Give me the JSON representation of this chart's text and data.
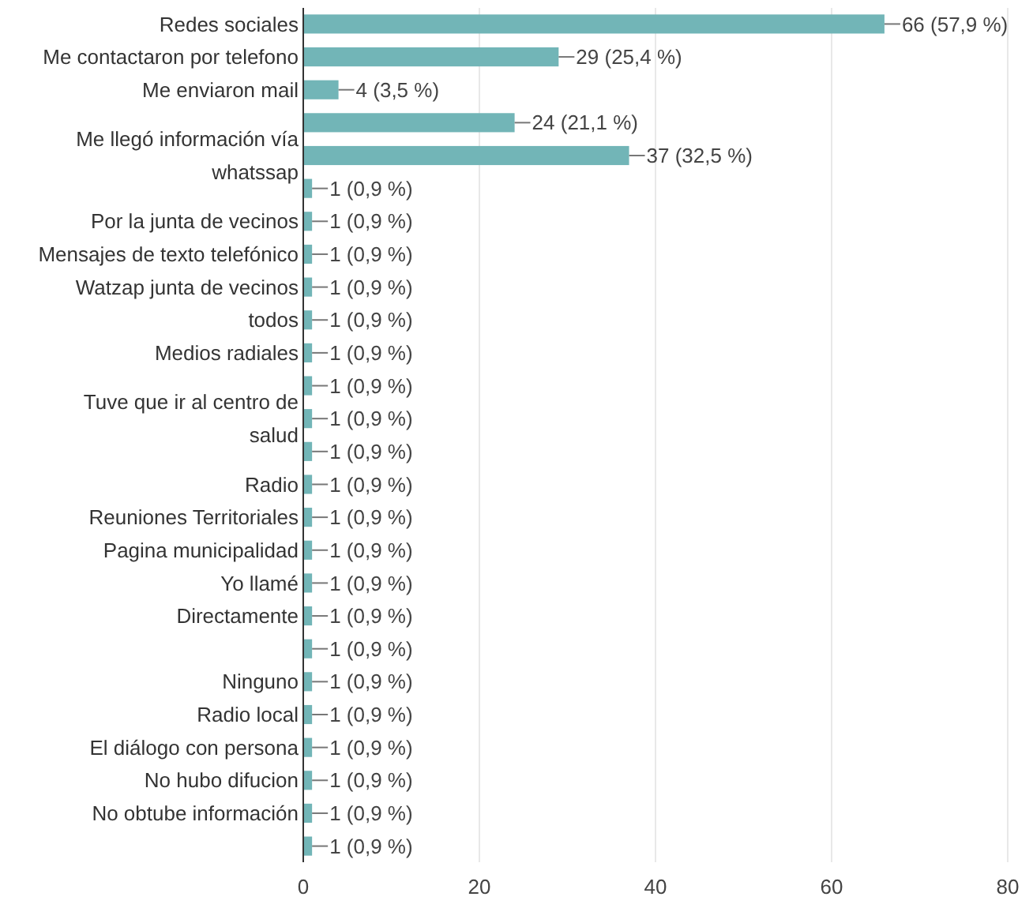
{
  "chart_data": {
    "type": "bar",
    "orientation": "horizontal",
    "color": "#72b5b7",
    "categories": [
      "Redes sociales",
      "Me contactaron por telefono",
      "Me enviaron mail",
      null,
      "Me llegó información vía whatssap",
      null,
      "Por la junta de vecinos",
      "Mensajes de texto telefónico",
      "Watzap junta de vecinos",
      "todos",
      "Medios radiales",
      null,
      "Tuve que ir al centro de salud",
      null,
      "Radio",
      "Reuniones Territoriales",
      "Pagina municipalidad",
      "Yo llamé",
      "Directamente",
      null,
      "Ninguno",
      "Radio local",
      "El diálogo con persona",
      "No hubo difucion",
      "No obtube información",
      null
    ],
    "values": [
      66,
      29,
      4,
      24,
      37,
      1,
      1,
      1,
      1,
      1,
      1,
      1,
      1,
      1,
      1,
      1,
      1,
      1,
      1,
      1,
      1,
      1,
      1,
      1,
      1,
      1
    ],
    "value_labels": [
      "66 (57,9 %)",
      "29 (25,4 %)",
      "4 (3,5 %)",
      "24 (21,1 %)",
      "37 (32,5 %)",
      "1 (0,9 %)",
      "1 (0,9 %)",
      "1 (0,9 %)",
      "1 (0,9 %)",
      "1 (0,9 %)",
      "1 (0,9 %)",
      "1 (0,9 %)",
      "1 (0,9 %)",
      "1 (0,9 %)",
      "1 (0,9 %)",
      "1 (0,9 %)",
      "1 (0,9 %)",
      "1 (0,9 %)",
      "1 (0,9 %)",
      "1 (0,9 %)",
      "1 (0,9 %)",
      "1 (0,9 %)",
      "1 (0,9 %)",
      "1 (0,9 %)",
      "1 (0,9 %)",
      "1 (0,9 %)"
    ],
    "xlim": [
      0,
      80
    ],
    "xticks": [
      0,
      20,
      40,
      60,
      80
    ],
    "grid": "x"
  }
}
